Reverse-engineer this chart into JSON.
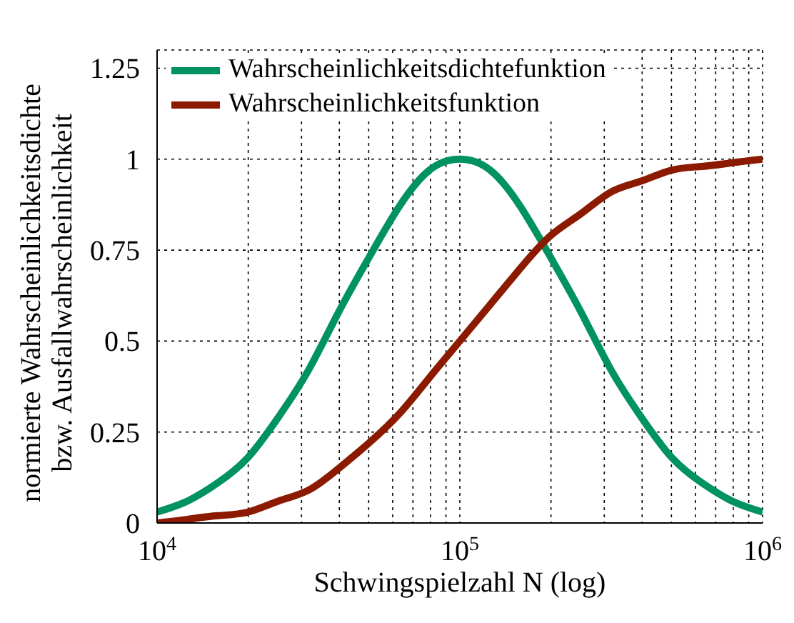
{
  "chart_data": {
    "type": "line",
    "xlabel": "Schwingspielzahl N (log)",
    "ylabel": "normierte Wahrscheinlichkeitsdichte\nbzw. Ausfallwahrscheinlichkeit",
    "x": [
      10000,
      12589,
      15849,
      19953,
      25119,
      31623,
      39811,
      50119,
      63096,
      79433,
      100000,
      125893,
      158489,
      199526,
      251189,
      316228,
      398107,
      501187,
      630957,
      794328,
      1000000
    ],
    "series": [
      {
        "name": "Wahrscheinlichkeitsdichtefunktion",
        "color": "#00935f",
        "values": [
          0.03,
          0.06,
          0.11,
          0.18,
          0.29,
          0.42,
          0.58,
          0.73,
          0.87,
          0.97,
          1,
          0.97,
          0.87,
          0.73,
          0.58,
          0.42,
          0.29,
          0.18,
          0.11,
          0.06,
          0.03
        ]
      },
      {
        "name": "Wahrscheinlichkeitsfunktion",
        "color": "#8b1a00",
        "values": [
          0.0,
          0.01,
          0.02,
          0.03,
          0.06,
          0.09,
          0.15,
          0.22,
          0.3,
          0.4,
          0.5,
          0.6,
          0.7,
          0.79,
          0.85,
          0.91,
          0.94,
          0.97,
          0.98,
          0.99,
          1.0
        ]
      }
    ],
    "log": "x",
    "xlim": [
      10000,
      1000000
    ],
    "xticks": [
      {
        "value": 10000,
        "label": "10$^{4}$"
      },
      {
        "value": 20000,
        "label": null
      },
      {
        "value": 30000,
        "label": null
      },
      {
        "value": 40000,
        "label": null
      },
      {
        "value": 50000,
        "label": null
      },
      {
        "value": 60000,
        "label": null
      },
      {
        "value": 70000,
        "label": null
      },
      {
        "value": 80000,
        "label": null
      },
      {
        "value": 90000,
        "label": null
      },
      {
        "value": 100000,
        "label": "10$^{5}$"
      },
      {
        "value": 200000,
        "label": null
      },
      {
        "value": 300000,
        "label": null
      },
      {
        "value": 400000,
        "label": null
      },
      {
        "value": 500000,
        "label": null
      },
      {
        "value": 600000,
        "label": null
      },
      {
        "value": 700000,
        "label": null
      },
      {
        "value": 800000,
        "label": null
      },
      {
        "value": 900000,
        "label": null
      },
      {
        "value": 1000000,
        "label": "10$^{6}$"
      }
    ],
    "ylim": [
      0,
      1.3
    ],
    "yticks": [
      0,
      0.25,
      0.5,
      0.75,
      1,
      1.25
    ],
    "grid": true,
    "legend": "top left",
    "marker": "none",
    "line_style": "solid"
  }
}
